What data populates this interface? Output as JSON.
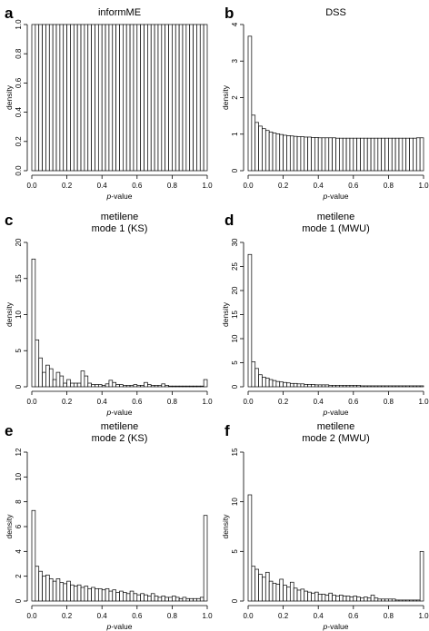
{
  "chart_data": [
    {
      "panel": "a",
      "type": "bar",
      "title": "informME",
      "xlabel_italic": "p",
      "xlabel_rest": "-value",
      "ylabel": "density",
      "xlim": [
        0,
        1
      ],
      "ylim": [
        0,
        1.0
      ],
      "xticks": [
        "0.0",
        "0.2",
        "0.4",
        "0.6",
        "0.8",
        "1.0"
      ],
      "yticks": [
        "0.0",
        "0.2",
        "0.4",
        "0.6",
        "0.8",
        "1.0"
      ],
      "bin_width": 0.02,
      "values": [
        1,
        1,
        1,
        1,
        1,
        1,
        1,
        1,
        1,
        1,
        1,
        1,
        1,
        1,
        1,
        1,
        1,
        1,
        1,
        1,
        1,
        1,
        1,
        1,
        1,
        1,
        1,
        1,
        1,
        1,
        1,
        1,
        1,
        1,
        1,
        1,
        1,
        1,
        1,
        1,
        1,
        1,
        1,
        1,
        1,
        1,
        1,
        1,
        1,
        1
      ]
    },
    {
      "panel": "b",
      "type": "bar",
      "title": "DSS",
      "xlabel_italic": "p",
      "xlabel_rest": "-value",
      "ylabel": "density",
      "xlim": [
        0,
        1
      ],
      "ylim": [
        0,
        4
      ],
      "xticks": [
        "0.0",
        "0.2",
        "0.4",
        "0.6",
        "0.8",
        "1.0"
      ],
      "yticks": [
        "0",
        "1",
        "2",
        "3",
        "4"
      ],
      "bin_width": 0.02,
      "values": [
        3.68,
        1.52,
        1.32,
        1.22,
        1.15,
        1.1,
        1.06,
        1.03,
        1.01,
        0.99,
        0.97,
        0.96,
        0.95,
        0.94,
        0.93,
        0.93,
        0.92,
        0.92,
        0.91,
        0.91,
        0.9,
        0.9,
        0.9,
        0.9,
        0.9,
        0.89,
        0.89,
        0.89,
        0.89,
        0.89,
        0.89,
        0.89,
        0.89,
        0.89,
        0.89,
        0.89,
        0.89,
        0.89,
        0.89,
        0.89,
        0.89,
        0.89,
        0.89,
        0.89,
        0.89,
        0.89,
        0.89,
        0.89,
        0.9,
        0.9
      ]
    },
    {
      "panel": "c",
      "type": "bar",
      "title": "metilene",
      "subtitle": "mode 1 (KS)",
      "xlabel_italic": "p",
      "xlabel_rest": "-value",
      "ylabel": "density",
      "xlim": [
        0,
        1
      ],
      "ylim": [
        0,
        20
      ],
      "xticks": [
        "0.0",
        "0.2",
        "0.4",
        "0.6",
        "0.8",
        "1.0"
      ],
      "yticks": [
        "0",
        "5",
        "10",
        "15",
        "20"
      ],
      "bin_width": 0.02,
      "values": [
        17.7,
        6.5,
        4.0,
        2.0,
        3.0,
        2.5,
        1.0,
        2.0,
        1.5,
        0.5,
        1.0,
        0.5,
        0.5,
        0.5,
        2.2,
        1.5,
        0.5,
        0.3,
        0.3,
        0.3,
        0.2,
        0.4,
        0.9,
        0.6,
        0.3,
        0.3,
        0.2,
        0.2,
        0.2,
        0.3,
        0.2,
        0.2,
        0.6,
        0.3,
        0.2,
        0.2,
        0.2,
        0.4,
        0.2,
        0.1,
        0.1,
        0.1,
        0.1,
        0.1,
        0.1,
        0.1,
        0.1,
        0.1,
        0.1,
        1.0
      ]
    },
    {
      "panel": "d",
      "type": "bar",
      "title": "metilene",
      "subtitle": "mode 1 (MWU)",
      "xlabel_italic": "p",
      "xlabel_rest": "-value",
      "ylabel": "density",
      "xlim": [
        0,
        1
      ],
      "ylim": [
        0,
        30
      ],
      "xticks": [
        "0.0",
        "0.2",
        "0.4",
        "0.6",
        "0.8",
        "1.0"
      ],
      "yticks": [
        "0",
        "5",
        "10",
        "15",
        "20",
        "25",
        "30"
      ],
      "bin_width": 0.02,
      "values": [
        27.5,
        5.2,
        3.8,
        2.5,
        2.0,
        1.8,
        1.5,
        1.3,
        1.1,
        1.0,
        0.9,
        0.8,
        0.7,
        0.7,
        0.6,
        0.6,
        0.5,
        0.5,
        0.5,
        0.4,
        0.4,
        0.4,
        0.4,
        0.3,
        0.3,
        0.3,
        0.3,
        0.3,
        0.3,
        0.3,
        0.3,
        0.3,
        0.2,
        0.2,
        0.2,
        0.2,
        0.2,
        0.2,
        0.2,
        0.2,
        0.2,
        0.2,
        0.2,
        0.2,
        0.2,
        0.2,
        0.2,
        0.2,
        0.2,
        0.2
      ]
    },
    {
      "panel": "e",
      "type": "bar",
      "title": "metilene",
      "subtitle": "mode 2 (KS)",
      "xlabel_italic": "p",
      "xlabel_rest": "-value",
      "ylabel": "density",
      "xlim": [
        0,
        1
      ],
      "ylim": [
        0,
        12
      ],
      "xticks": [
        "0.0",
        "0.2",
        "0.4",
        "0.6",
        "0.8",
        "1.0"
      ],
      "yticks": [
        "0",
        "2",
        "4",
        "6",
        "8",
        "10",
        "12"
      ],
      "bin_width": 0.02,
      "values": [
        7.3,
        2.8,
        2.4,
        2.0,
        2.1,
        1.8,
        1.6,
        1.8,
        1.5,
        1.4,
        1.6,
        1.3,
        1.2,
        1.3,
        1.1,
        1.2,
        1.0,
        1.1,
        1.0,
        1.0,
        0.9,
        1.0,
        0.8,
        0.9,
        0.7,
        0.8,
        0.7,
        0.6,
        0.8,
        0.6,
        0.5,
        0.6,
        0.5,
        0.4,
        0.6,
        0.4,
        0.3,
        0.4,
        0.3,
        0.3,
        0.4,
        0.3,
        0.2,
        0.3,
        0.2,
        0.2,
        0.2,
        0.2,
        0.3,
        6.9
      ]
    },
    {
      "panel": "f",
      "type": "bar",
      "title": "metilene",
      "subtitle": "mode 2 (MWU)",
      "xlabel_italic": "p",
      "xlabel_rest": "-value",
      "ylabel": "density",
      "xlim": [
        0,
        1
      ],
      "ylim": [
        0,
        15
      ],
      "xticks": [
        "0.0",
        "0.2",
        "0.4",
        "0.6",
        "0.8",
        "1.0"
      ],
      "yticks": [
        "0",
        "5",
        "10",
        "15"
      ],
      "bin_width": 0.02,
      "values": [
        10.7,
        3.5,
        3.2,
        2.7,
        2.4,
        2.9,
        2.0,
        1.8,
        1.7,
        2.2,
        1.6,
        1.4,
        1.9,
        1.3,
        1.1,
        1.2,
        1.0,
        0.9,
        0.8,
        0.9,
        0.7,
        0.7,
        0.6,
        0.8,
        0.6,
        0.5,
        0.6,
        0.5,
        0.5,
        0.4,
        0.5,
        0.4,
        0.3,
        0.4,
        0.3,
        0.6,
        0.3,
        0.2,
        0.2,
        0.2,
        0.2,
        0.2,
        0.1,
        0.1,
        0.1,
        0.1,
        0.1,
        0.1,
        0.1,
        5.0
      ]
    }
  ]
}
